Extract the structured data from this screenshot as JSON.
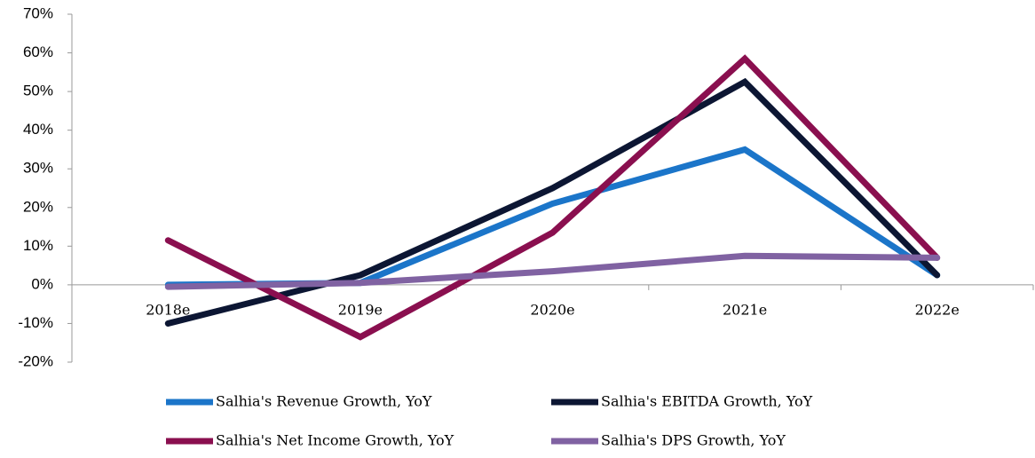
{
  "chart_data": {
    "type": "line",
    "categories": [
      "2018e",
      "2019e",
      "2020e",
      "2021e",
      "2022e"
    ],
    "series": [
      {
        "name": "Salhia's Revenue Growth, YoY",
        "color": "#1b75c9",
        "values": [
          0,
          0.5,
          21,
          35,
          2.5
        ]
      },
      {
        "name": "Salhia's EBITDA Growth, YoY",
        "color": "#0c1633",
        "values": [
          -10,
          2.5,
          25,
          52.5,
          2.5
        ]
      },
      {
        "name": "Salhia's Net Income Growth, YoY",
        "color": "#8a0f4f",
        "values": [
          11.5,
          -13.5,
          13.5,
          58.5,
          7
        ]
      },
      {
        "name": "Salhia's DPS Growth, YoY",
        "color": "#8062a2",
        "values": [
          -0.5,
          0.5,
          3.5,
          7.5,
          7
        ]
      }
    ],
    "ylim": [
      -20,
      70
    ],
    "yticks": [
      {
        "value": -20,
        "label": "-20%"
      },
      {
        "value": -10,
        "label": "-10%"
      },
      {
        "value": 0,
        "label": "0%"
      },
      {
        "value": 10,
        "label": "10%"
      },
      {
        "value": 20,
        "label": "20%"
      },
      {
        "value": 30,
        "label": "30%"
      },
      {
        "value": 40,
        "label": "40%"
      },
      {
        "value": 50,
        "label": "50%"
      },
      {
        "value": 60,
        "label": "60%"
      },
      {
        "value": 70,
        "label": "70%"
      }
    ]
  }
}
